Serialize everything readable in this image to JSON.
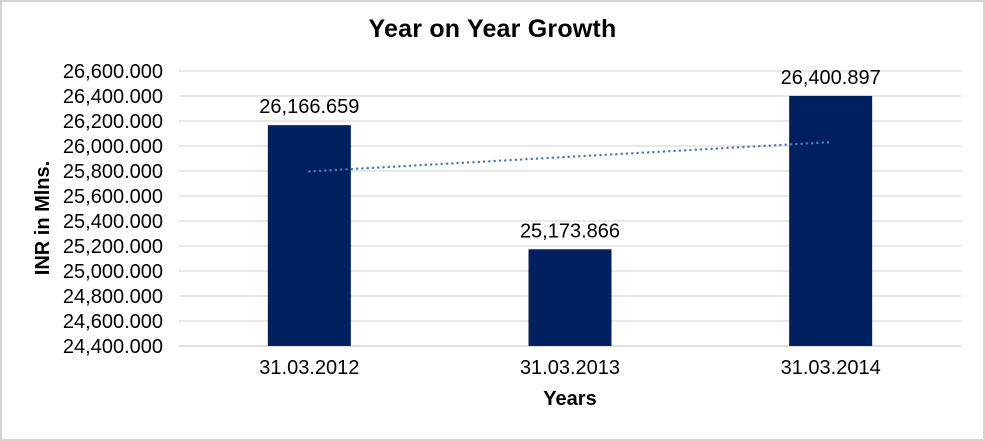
{
  "window": {
    "background": "#ffffff",
    "border_color": "#d4d4d4"
  },
  "chart_data": {
    "type": "bar",
    "title": "Year on Year Growth",
    "categories": [
      "31.03.2012",
      "31.03.2013",
      "31.03.2014"
    ],
    "values": [
      26166.659,
      25173.866,
      26400.897
    ],
    "data_labels": [
      "26,166.659",
      "25,173.866",
      "26,400.897"
    ],
    "xlabel": "Years",
    "ylabel": "INR in Mlns.",
    "ylim": [
      24400,
      26600
    ],
    "ytick_step": 200,
    "ytick_labels": [
      "26,600.000",
      "26,400.000",
      "26,200.000",
      "26,000.000",
      "25,800.000",
      "25,600.000",
      "25,400.000",
      "25,200.000",
      "25,000.000",
      "24,800.000",
      "24,600.000",
      "24,400.000"
    ],
    "grid": true,
    "legend": "none",
    "bar_color": "#002060",
    "gridline_color": "#d9d9d9",
    "baseline_color": "#c9c9c9",
    "text_color": "#000000",
    "trendline": {
      "type": "linear",
      "style": "dotted",
      "color": "#4a7ebb",
      "start_value": 25796.68,
      "end_value": 26030.92
    }
  }
}
